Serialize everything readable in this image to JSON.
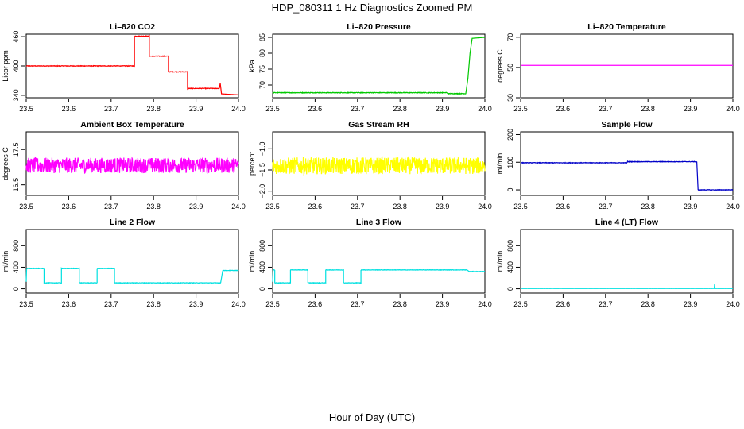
{
  "figure": {
    "title": "HDP_080311  1 Hz Diagnostics Zoomed PM",
    "xlabel": "Hour of Day (UTC)"
  },
  "chart_data": [
    {
      "type": "line",
      "title": "Li–820 CO2",
      "ylabel": "Licor ppm",
      "color": "#ff0000",
      "xlim": [
        23.5,
        24.0
      ],
      "ylim": [
        335,
        465
      ],
      "xticks": [
        "23.5",
        "23.6",
        "23.7",
        "23.8",
        "23.9",
        "24.0"
      ],
      "yticks": [
        "340",
        "400",
        "460"
      ],
      "noise": 0.6,
      "segments": [
        [
          23.5,
          400
        ],
        [
          23.755,
          400
        ],
        [
          23.755,
          461
        ],
        [
          23.79,
          461
        ],
        [
          23.79,
          420
        ],
        [
          23.835,
          420
        ],
        [
          23.835,
          388
        ],
        [
          23.88,
          388
        ],
        [
          23.88,
          354
        ],
        [
          23.955,
          354
        ],
        [
          23.957,
          365
        ],
        [
          23.96,
          343
        ],
        [
          24.0,
          341
        ]
      ]
    },
    {
      "type": "line",
      "title": "Li–820 Pressure",
      "ylabel": "kPa",
      "color": "#00c800",
      "xlim": [
        23.5,
        24.0
      ],
      "ylim": [
        66,
        86
      ],
      "xticks": [
        "23.5",
        "23.6",
        "23.7",
        "23.8",
        "23.9",
        "24.0"
      ],
      "yticks": [
        "70",
        "75",
        "80",
        "85"
      ],
      "noise": 0.1,
      "segments": [
        [
          23.5,
          67.6
        ],
        [
          23.91,
          67.6
        ],
        [
          23.913,
          67.3
        ],
        [
          23.955,
          67.3
        ],
        [
          23.96,
          72
        ],
        [
          23.965,
          80
        ],
        [
          23.97,
          84.7
        ],
        [
          24.0,
          85
        ]
      ]
    },
    {
      "type": "line",
      "title": "Li–820 Temperature",
      "ylabel": "degrees C",
      "color": "#ff00ff",
      "xlim": [
        23.5,
        24.0
      ],
      "ylim": [
        30,
        72
      ],
      "xticks": [
        "23.5",
        "23.6",
        "23.7",
        "23.8",
        "23.9",
        "24.0"
      ],
      "yticks": [
        "30",
        "50",
        "70"
      ],
      "noise": 0,
      "segments": [
        [
          23.5,
          51.4
        ],
        [
          24.0,
          51.4
        ]
      ]
    },
    {
      "type": "line",
      "title": "Ambient Box Temperature",
      "ylabel": "degrees C",
      "color": "#ff00ff",
      "xlim": [
        23.5,
        24.0
      ],
      "ylim": [
        16.2,
        18.0
      ],
      "xticks": [
        "23.5",
        "23.6",
        "23.7",
        "23.8",
        "23.9",
        "24.0"
      ],
      "yticks": [
        "16.5",
        "17.5"
      ],
      "noise": 0.22,
      "segments": [
        [
          23.5,
          17.05
        ],
        [
          24.0,
          17.05
        ]
      ]
    },
    {
      "type": "line",
      "title": "Gas Stream RH",
      "ylabel": "percent",
      "color": "#ffff00",
      "xlim": [
        23.5,
        24.0
      ],
      "ylim": [
        -2.1,
        -0.6
      ],
      "xticks": [
        "23.5",
        "23.6",
        "23.7",
        "23.8",
        "23.9",
        "24.0"
      ],
      "yticks": [
        "-2.0",
        "-1.5",
        "-1.0"
      ],
      "noise": 0.2,
      "segments": [
        [
          23.5,
          -1.4
        ],
        [
          24.0,
          -1.4
        ]
      ]
    },
    {
      "type": "line",
      "title": "Sample Flow",
      "ylabel": "ml/min",
      "color": "#0000c8",
      "xlim": [
        23.5,
        24.0
      ],
      "ylim": [
        -20,
        210
      ],
      "xticks": [
        "23.5",
        "23.6",
        "23.7",
        "23.8",
        "23.9",
        "24.0"
      ],
      "yticks": [
        "0",
        "100",
        "200"
      ],
      "noise": 1,
      "segments": [
        [
          23.5,
          98
        ],
        [
          23.75,
          98
        ],
        [
          23.752,
          102
        ],
        [
          23.915,
          102
        ],
        [
          23.918,
          0
        ],
        [
          24.0,
          0
        ]
      ]
    },
    {
      "type": "line",
      "title": "Line 2 Flow",
      "ylabel": "ml/min",
      "color": "#00e0e0",
      "xlim": [
        23.5,
        24.0
      ],
      "ylim": [
        -80,
        1100
      ],
      "xticks": [
        "23.5",
        "23.6",
        "23.7",
        "23.8",
        "23.9",
        "24.0"
      ],
      "yticks": [
        "0",
        "400",
        "800"
      ],
      "noise": 4,
      "segments": [
        [
          23.5,
          130
        ],
        [
          23.501,
          380
        ],
        [
          23.542,
          380
        ],
        [
          23.542,
          110
        ],
        [
          23.583,
          110
        ],
        [
          23.583,
          380
        ],
        [
          23.625,
          380
        ],
        [
          23.625,
          110
        ],
        [
          23.667,
          110
        ],
        [
          23.667,
          380
        ],
        [
          23.708,
          380
        ],
        [
          23.708,
          110
        ],
        [
          23.958,
          110
        ],
        [
          23.963,
          340
        ],
        [
          24.0,
          340
        ]
      ]
    },
    {
      "type": "line",
      "title": "Line 3 Flow",
      "ylabel": "ml/min",
      "color": "#00e0e0",
      "xlim": [
        23.5,
        24.0
      ],
      "ylim": [
        -80,
        1100
      ],
      "xticks": [
        "23.5",
        "23.6",
        "23.7",
        "23.8",
        "23.9",
        "24.0"
      ],
      "yticks": [
        "0",
        "400",
        "800"
      ],
      "noise": 4,
      "segments": [
        [
          23.5,
          130
        ],
        [
          23.501,
          350
        ],
        [
          23.505,
          350
        ],
        [
          23.505,
          110
        ],
        [
          23.542,
          110
        ],
        [
          23.542,
          350
        ],
        [
          23.583,
          350
        ],
        [
          23.583,
          110
        ],
        [
          23.625,
          110
        ],
        [
          23.625,
          350
        ],
        [
          23.667,
          350
        ],
        [
          23.667,
          110
        ],
        [
          23.708,
          110
        ],
        [
          23.708,
          350
        ],
        [
          23.958,
          350
        ],
        [
          23.963,
          320
        ],
        [
          24.0,
          320
        ]
      ]
    },
    {
      "type": "line",
      "title": "Line 4 (LT) Flow",
      "ylabel": "ml/min",
      "color": "#00e0e0",
      "xlim": [
        23.5,
        24.0
      ],
      "ylim": [
        -80,
        1100
      ],
      "xticks": [
        "23.5",
        "23.6",
        "23.7",
        "23.8",
        "23.9",
        "24.0"
      ],
      "yticks": [
        "0",
        "400",
        "800"
      ],
      "noise": 1,
      "segments": [
        [
          23.5,
          5
        ],
        [
          23.956,
          5
        ],
        [
          23.957,
          90
        ],
        [
          23.958,
          5
        ],
        [
          24.0,
          5
        ]
      ]
    }
  ]
}
